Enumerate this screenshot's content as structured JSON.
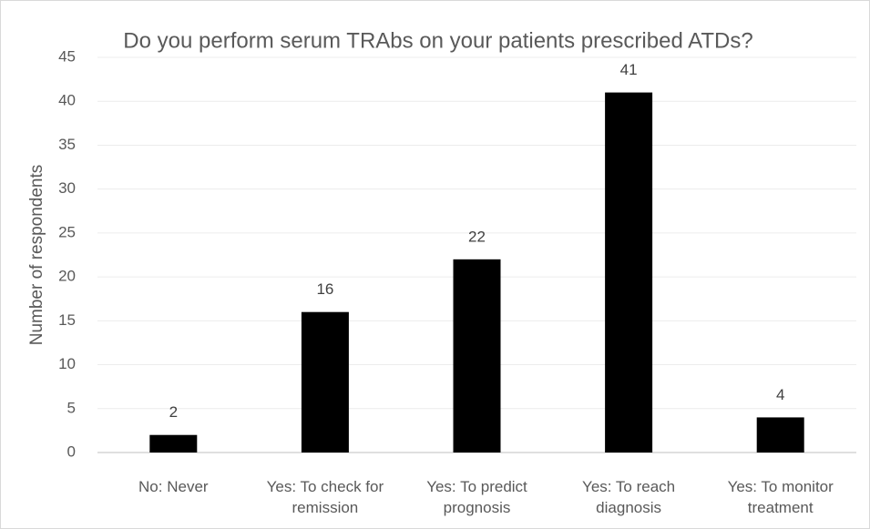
{
  "chart_data": {
    "type": "bar",
    "title": "Do you perform serum TRAbs on your patients prescribed ATDs?",
    "y_label": "Number of respondents",
    "categories": [
      "No: Never",
      "Yes: To check for remission",
      "Yes: To predict prognosis",
      "Yes: To reach diagnosis",
      "Yes: To monitor treatment"
    ],
    "values": [
      2,
      16,
      22,
      41,
      4
    ],
    "color": "#000000",
    "ylim": [
      0,
      45
    ],
    "yticks": [
      0,
      5,
      10,
      15,
      20,
      25,
      30,
      35,
      40,
      45
    ],
    "grid": true
  }
}
